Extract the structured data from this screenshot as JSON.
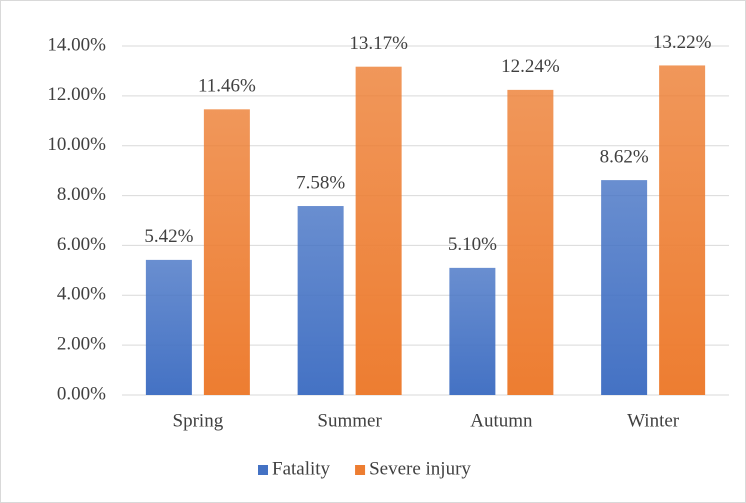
{
  "chart_data": {
    "type": "bar",
    "categories": [
      "Spring",
      "Summer",
      "Autumn",
      "Winter"
    ],
    "series": [
      {
        "name": "Fatality",
        "color": "#4472c4",
        "values": [
          5.42,
          7.58,
          5.1,
          8.62
        ],
        "value_labels": [
          "5.42%",
          "7.58%",
          "5.10%",
          "8.62%"
        ]
      },
      {
        "name": "Severe injury",
        "color": "#ed7d31",
        "values": [
          11.46,
          13.17,
          12.24,
          13.22
        ],
        "value_labels": [
          "11.46%",
          "13.17%",
          "12.24%",
          "13.22%"
        ]
      }
    ],
    "ylim": [
      0,
      14
    ],
    "yticks": [
      {
        "value": 0,
        "label": "0.00%"
      },
      {
        "value": 2,
        "label": "2.00%"
      },
      {
        "value": 4,
        "label": "4.00%"
      },
      {
        "value": 6,
        "label": "6.00%"
      },
      {
        "value": 8,
        "label": "8.00%"
      },
      {
        "value": 10,
        "label": "10.00%"
      },
      {
        "value": 12,
        "label": "12.00%"
      },
      {
        "value": 14,
        "label": "14.00%"
      }
    ],
    "grid": true,
    "legend": "bottom"
  }
}
